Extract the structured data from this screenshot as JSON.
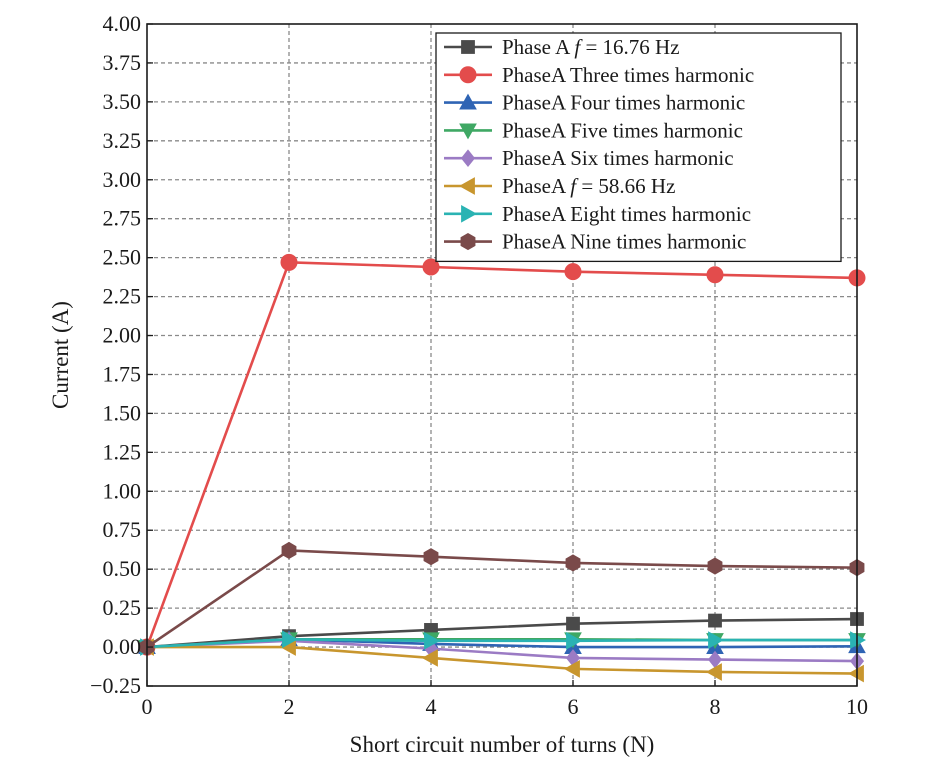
{
  "chart_data": {
    "type": "line",
    "xlabel": "Short circuit number of turns (N)",
    "ylabel": "Current (A)",
    "xlim": [
      0,
      10
    ],
    "ylim": [
      -0.25,
      4.0
    ],
    "x_ticks": [
      "0",
      "2",
      "4",
      "6",
      "8",
      "10"
    ],
    "y_ticks": [
      "4.00",
      "3.75",
      "3.50",
      "3.25",
      "3.00",
      "2.75",
      "2.50",
      "2.25",
      "2.00",
      "1.75",
      "1.50",
      "1.25",
      "1.00",
      "0.75",
      "0.50",
      "0.25",
      "0.00",
      "−0.25"
    ],
    "grid": true,
    "legend_position": "top-right",
    "x": [
      0,
      2,
      4,
      6,
      8,
      10
    ],
    "series": [
      {
        "name": "Phase A f = 16.76 Hz",
        "legend_main": "Phase A ",
        "legend_italic": "f",
        "legend_rest": " = 16.76 Hz",
        "color": "#4a4a4a",
        "marker": "square",
        "values": [
          0.0,
          0.07,
          0.11,
          0.15,
          0.17,
          0.18
        ]
      },
      {
        "name": "PhaseA Three times harmonic",
        "legend_main": "PhaseA Three times harmonic",
        "legend_italic": "",
        "legend_rest": "",
        "color": "#e34c4c",
        "marker": "circle",
        "values": [
          0.0,
          2.47,
          2.44,
          2.41,
          2.39,
          2.37
        ]
      },
      {
        "name": "PhaseA Four times harmonic",
        "legend_main": "PhaseA Four times harmonic",
        "legend_italic": "",
        "legend_rest": "",
        "color": "#2f64b4",
        "marker": "triangle-up",
        "values": [
          0.0,
          0.05,
          0.02,
          0.0,
          0.0,
          0.005
        ]
      },
      {
        "name": "PhaseA Five times harmonic",
        "legend_main": "PhaseA Five times harmonic",
        "legend_italic": "",
        "legend_rest": "",
        "color": "#3fa864",
        "marker": "triangle-down",
        "values": [
          0.0,
          0.05,
          0.05,
          0.05,
          0.045,
          0.045
        ]
      },
      {
        "name": "PhaseA Six times harmonic",
        "legend_main": "PhaseA Six times harmonic",
        "legend_italic": "",
        "legend_rest": "",
        "color": "#9b7bc4",
        "marker": "diamond",
        "values": [
          0.0,
          0.04,
          -0.01,
          -0.07,
          -0.08,
          -0.09
        ]
      },
      {
        "name": "PhaseA f = 58.66 Hz",
        "legend_main": "PhaseA ",
        "legend_italic": "f",
        "legend_rest": " = 58.66 Hz",
        "color": "#c8962e",
        "marker": "triangle-left",
        "values": [
          0.0,
          0.0,
          -0.07,
          -0.14,
          -0.16,
          -0.17
        ]
      },
      {
        "name": "PhaseA Eight times harmonic",
        "legend_main": "PhaseA Eight times harmonic",
        "legend_italic": "",
        "legend_rest": "",
        "color": "#2ab3b3",
        "marker": "triangle-right",
        "values": [
          0.0,
          0.05,
          0.04,
          0.04,
          0.045,
          0.045
        ]
      },
      {
        "name": "PhaseA Nine times harmonic",
        "legend_main": "PhaseA Nine times harmonic",
        "legend_italic": "",
        "legend_rest": "",
        "color": "#7a4a4a",
        "marker": "hexagon",
        "values": [
          0.0,
          0.62,
          0.58,
          0.54,
          0.52,
          0.51
        ]
      }
    ]
  }
}
